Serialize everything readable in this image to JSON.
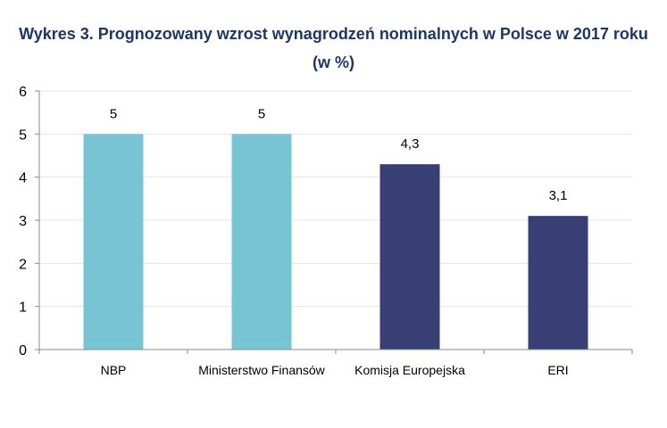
{
  "chart_data": {
    "type": "bar",
    "title": "Wykres 3. Prognozowany wzrost wynagrodzeń nominalnych w Polsce w 2017 roku",
    "subtitle": "(w %)",
    "categories": [
      "NBP",
      "Ministerstwo Finansów",
      "Komisja Europejska",
      "ERI"
    ],
    "values": [
      5,
      5,
      4.3,
      3.1
    ],
    "data_labels": [
      "5",
      "5",
      "4,3",
      "3,1"
    ],
    "bar_colors": [
      "#77c4d5",
      "#77c4d5",
      "#383f74",
      "#383f74"
    ],
    "ylim": [
      0,
      6
    ],
    "yticks": [
      "0",
      "1",
      "2",
      "3",
      "4",
      "5",
      "6"
    ],
    "grid": true,
    "xlabel": "",
    "ylabel": ""
  }
}
